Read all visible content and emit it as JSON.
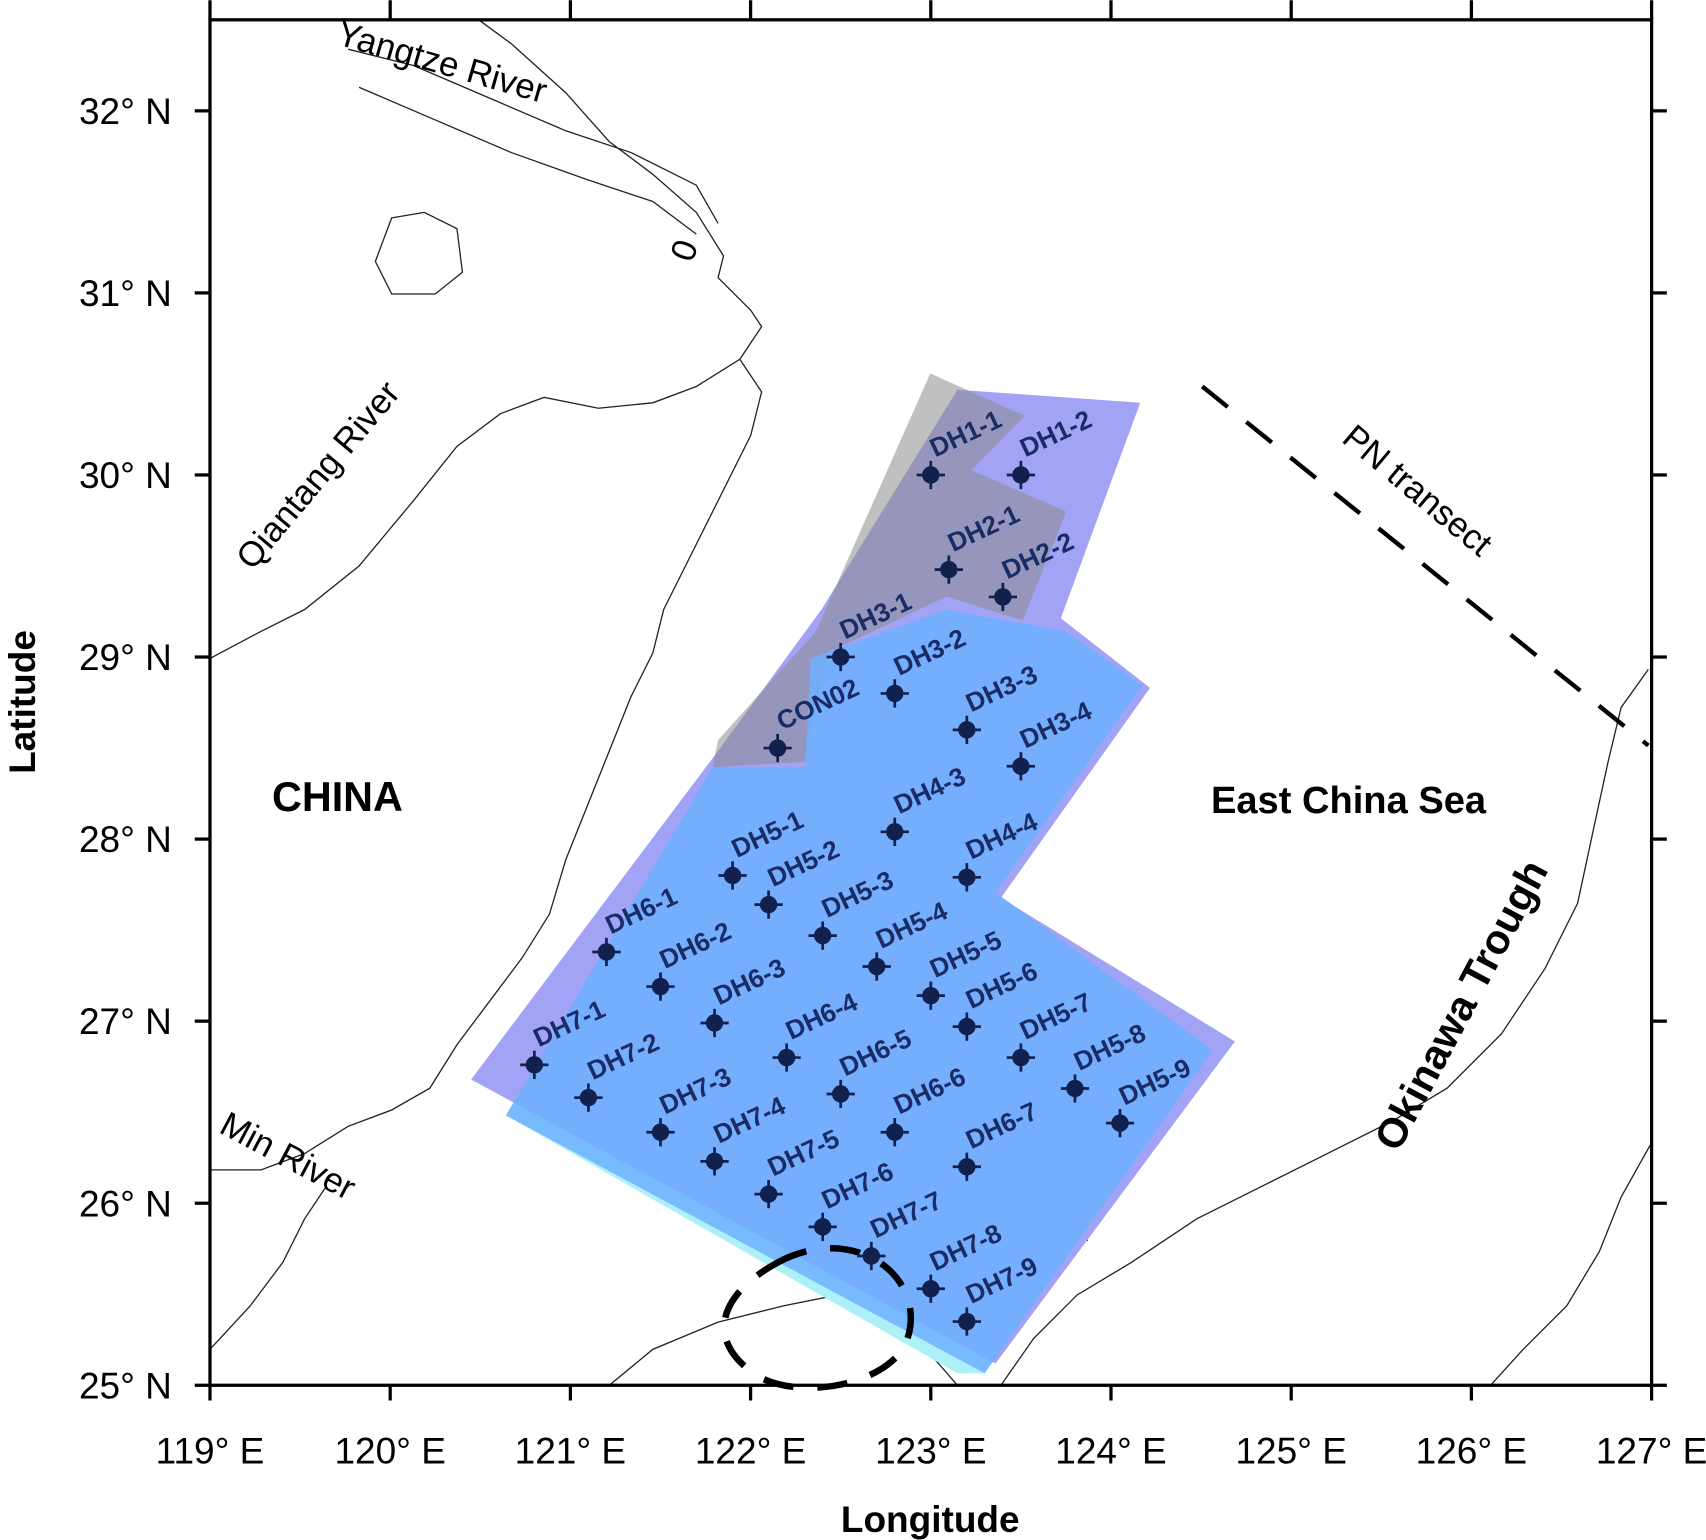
{
  "map": {
    "x_label": "Longitude",
    "y_label": "Latitude",
    "xlim": [
      119,
      127
    ],
    "ylim": [
      25,
      32.5
    ],
    "xticks": [
      {
        "value": 119,
        "label": "119° E"
      },
      {
        "value": 120,
        "label": "120° E"
      },
      {
        "value": 121,
        "label": "121° E"
      },
      {
        "value": 122,
        "label": "122° E"
      },
      {
        "value": 123,
        "label": "123° E"
      },
      {
        "value": 124,
        "label": "124° E"
      },
      {
        "value": 125,
        "label": "125° E"
      },
      {
        "value": 126,
        "label": "126° E"
      },
      {
        "value": 127,
        "label": "127° E"
      }
    ],
    "yticks": [
      {
        "value": 25,
        "label": "25° N"
      },
      {
        "value": 26,
        "label": "26° N"
      },
      {
        "value": 27,
        "label": "27° N"
      },
      {
        "value": 28,
        "label": "28° N"
      },
      {
        "value": 29,
        "label": "29° N"
      },
      {
        "value": 30,
        "label": "30° N"
      },
      {
        "value": 31,
        "label": "31° N"
      },
      {
        "value": 32,
        "label": "32° N"
      }
    ],
    "labels": {
      "china": "CHINA",
      "sea": "East China Sea",
      "trough": "Okinawa Trough",
      "yangtze": "Yangtze River",
      "qiantang": "Qiantang River",
      "min": "Min River",
      "pn": "PN transect",
      "contour": "0"
    },
    "stations": [
      {
        "name": "DH1-1",
        "lon": 123.0,
        "lat": 30.0
      },
      {
        "name": "DH1-2",
        "lon": 123.5,
        "lat": 30.0
      },
      {
        "name": "DH2-1",
        "lon": 123.1,
        "lat": 29.48
      },
      {
        "name": "DH2-2",
        "lon": 123.4,
        "lat": 29.33
      },
      {
        "name": "DH3-1",
        "lon": 122.5,
        "lat": 29.0
      },
      {
        "name": "DH3-2",
        "lon": 122.8,
        "lat": 28.8
      },
      {
        "name": "DH3-3",
        "lon": 123.2,
        "lat": 28.6
      },
      {
        "name": "DH3-4",
        "lon": 123.5,
        "lat": 28.4
      },
      {
        "name": "CON02",
        "lon": 122.15,
        "lat": 28.5
      },
      {
        "name": "DH4-3",
        "lon": 122.8,
        "lat": 28.04
      },
      {
        "name": "DH4-4",
        "lon": 123.2,
        "lat": 27.79
      },
      {
        "name": "DH5-1",
        "lon": 121.9,
        "lat": 27.8
      },
      {
        "name": "DH5-2",
        "lon": 122.1,
        "lat": 27.64
      },
      {
        "name": "DH5-3",
        "lon": 122.4,
        "lat": 27.47
      },
      {
        "name": "DH5-4",
        "lon": 122.7,
        "lat": 27.3
      },
      {
        "name": "DH5-5",
        "lon": 123.0,
        "lat": 27.14
      },
      {
        "name": "DH5-6",
        "lon": 123.2,
        "lat": 26.97
      },
      {
        "name": "DH5-7",
        "lon": 123.5,
        "lat": 26.8
      },
      {
        "name": "DH5-8",
        "lon": 123.8,
        "lat": 26.63
      },
      {
        "name": "DH5-9",
        "lon": 124.05,
        "lat": 26.44
      },
      {
        "name": "DH6-1",
        "lon": 121.2,
        "lat": 27.38
      },
      {
        "name": "DH6-2",
        "lon": 121.5,
        "lat": 27.19
      },
      {
        "name": "DH6-3",
        "lon": 121.8,
        "lat": 26.99
      },
      {
        "name": "DH6-4",
        "lon": 122.2,
        "lat": 26.8
      },
      {
        "name": "DH6-5",
        "lon": 122.5,
        "lat": 26.6
      },
      {
        "name": "DH6-6",
        "lon": 122.8,
        "lat": 26.39
      },
      {
        "name": "DH6-7",
        "lon": 123.2,
        "lat": 26.2
      },
      {
        "name": "DH7-1",
        "lon": 120.8,
        "lat": 26.76
      },
      {
        "name": "DH7-2",
        "lon": 121.1,
        "lat": 26.58
      },
      {
        "name": "DH7-3",
        "lon": 121.5,
        "lat": 26.39
      },
      {
        "name": "DH7-4",
        "lon": 121.8,
        "lat": 26.23
      },
      {
        "name": "DH7-5",
        "lon": 122.1,
        "lat": 26.05
      },
      {
        "name": "DH7-6",
        "lon": 122.4,
        "lat": 25.87
      },
      {
        "name": "DH7-7",
        "lon": 122.67,
        "lat": 25.71
      },
      {
        "name": "DH7-8",
        "lon": 123.0,
        "lat": 25.53
      },
      {
        "name": "DH7-9",
        "lon": 123.2,
        "lat": 25.35
      }
    ]
  }
}
